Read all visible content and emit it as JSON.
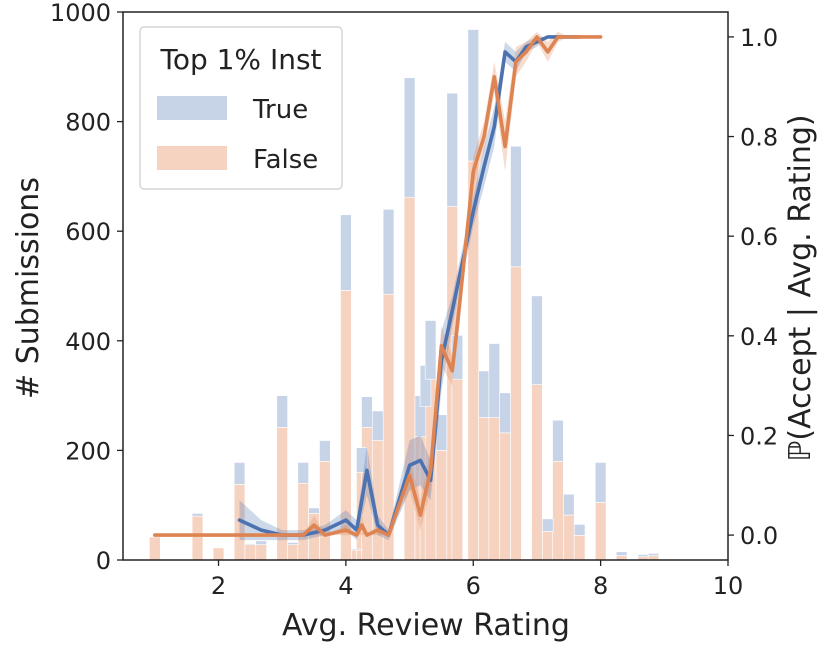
{
  "chart_data": {
    "type": "bar+line",
    "xlabel": "Avg. Review Rating",
    "ylabel_left": "# Submissions",
    "ylabel_right": "ℙ(Accept | Avg. Rating)",
    "xlim": [
      0.5,
      10
    ],
    "ylim_left": [
      0,
      1000
    ],
    "ylim_right": [
      -0.05,
      1.05
    ],
    "x_ticks": [
      2,
      4,
      6,
      8,
      10
    ],
    "y_ticks_left": [
      0,
      200,
      400,
      600,
      800,
      1000
    ],
    "y_ticks_right": [
      0.0,
      0.2,
      0.4,
      0.6,
      0.8,
      1.0
    ],
    "y_tick_labels_right": [
      "0.0",
      "0.2",
      "0.4",
      "0.6",
      "0.8",
      "1.0"
    ],
    "bar_width": 0.17,
    "legend": {
      "title": "Top 1% Inst",
      "position": "top-left",
      "entries": [
        "True",
        "False"
      ]
    },
    "colors": {
      "true_bar": "#c7d4e8",
      "false_bar": "#f6d3c1",
      "true_line": "#4c72b0",
      "false_line": "#dd8452"
    },
    "histogram": [
      {
        "x": 1.0,
        "total": 42,
        "false": 42
      },
      {
        "x": 1.67,
        "total": 85,
        "false": 80
      },
      {
        "x": 2.0,
        "total": 22,
        "false": 22
      },
      {
        "x": 2.33,
        "total": 178,
        "false": 138
      },
      {
        "x": 2.5,
        "total": 30,
        "false": 28
      },
      {
        "x": 2.67,
        "total": 35,
        "false": 28
      },
      {
        "x": 3.0,
        "total": 300,
        "false": 242
      },
      {
        "x": 3.17,
        "total": 32,
        "false": 28
      },
      {
        "x": 3.33,
        "total": 178,
        "false": 140
      },
      {
        "x": 3.5,
        "total": 95,
        "false": 85
      },
      {
        "x": 3.67,
        "total": 218,
        "false": 180
      },
      {
        "x": 4.0,
        "total": 630,
        "false": 492
      },
      {
        "x": 4.17,
        "total": 20,
        "false": 18
      },
      {
        "x": 4.25,
        "total": 205,
        "false": 160
      },
      {
        "x": 4.33,
        "total": 298,
        "false": 242
      },
      {
        "x": 4.5,
        "total": 272,
        "false": 218
      },
      {
        "x": 4.67,
        "total": 640,
        "false": 485
      },
      {
        "x": 5.0,
        "total": 880,
        "false": 662
      },
      {
        "x": 5.17,
        "total": 300,
        "false": 225
      },
      {
        "x": 5.25,
        "total": 355,
        "false": 280
      },
      {
        "x": 5.33,
        "total": 437,
        "false": 330
      },
      {
        "x": 5.5,
        "total": 265,
        "false": 200
      },
      {
        "x": 5.67,
        "total": 852,
        "false": 645
      },
      {
        "x": 5.75,
        "total": 410,
        "false": 330
      },
      {
        "x": 6.0,
        "total": 968,
        "false": 728
      },
      {
        "x": 6.17,
        "total": 345,
        "false": 260
      },
      {
        "x": 6.33,
        "total": 395,
        "false": 260
      },
      {
        "x": 6.5,
        "total": 305,
        "false": 232
      },
      {
        "x": 6.67,
        "total": 755,
        "false": 535
      },
      {
        "x": 7.0,
        "total": 482,
        "false": 320
      },
      {
        "x": 7.17,
        "total": 75,
        "false": 52
      },
      {
        "x": 7.33,
        "total": 255,
        "false": 180
      },
      {
        "x": 7.5,
        "total": 120,
        "false": 82
      },
      {
        "x": 7.67,
        "total": 65,
        "false": 45
      },
      {
        "x": 8.0,
        "total": 178,
        "false": 105
      },
      {
        "x": 8.33,
        "total": 15,
        "false": 8
      },
      {
        "x": 8.67,
        "total": 10,
        "false": 6
      },
      {
        "x": 8.83,
        "total": 12,
        "false": 8
      }
    ],
    "series": [
      {
        "key": "true_line",
        "x": [
          2.33,
          2.67,
          3.0,
          3.33,
          3.67,
          4.0,
          4.17,
          4.33,
          4.5,
          4.67,
          5.0,
          5.17,
          5.33,
          5.5,
          5.67,
          6.0,
          6.17,
          6.33,
          6.5,
          6.67,
          6.83,
          7.0,
          7.17,
          7.33,
          7.5,
          7.67
        ],
        "y": [
          0.03,
          0.01,
          0.0,
          0.0,
          0.01,
          0.03,
          0.01,
          0.13,
          0.02,
          0.0,
          0.14,
          0.15,
          0.11,
          0.35,
          0.45,
          0.65,
          0.74,
          0.82,
          0.97,
          0.95,
          0.98,
          0.99,
          1.0,
          1.0,
          1.0,
          1.0
        ],
        "band": [
          0.04,
          0.02,
          0.01,
          0.01,
          0.01,
          0.02,
          0.02,
          0.05,
          0.02,
          0.01,
          0.05,
          0.05,
          0.04,
          0.06,
          0.03,
          0.03,
          0.04,
          0.04,
          0.02,
          0.02,
          0.01,
          0.01,
          0.0,
          0.0,
          0.0,
          0.0
        ]
      },
      {
        "key": "false_line",
        "x": [
          1.0,
          2.0,
          3.0,
          3.17,
          3.33,
          3.5,
          3.67,
          4.0,
          4.17,
          4.25,
          4.33,
          4.5,
          4.67,
          5.0,
          5.17,
          5.33,
          5.5,
          5.67,
          5.75,
          6.0,
          6.17,
          6.33,
          6.5,
          6.67,
          6.83,
          7.0,
          7.17,
          7.33,
          7.5,
          7.67,
          8.0
        ],
        "y": [
          0.0,
          0.0,
          0.0,
          0.0,
          0.0,
          0.02,
          0.0,
          0.01,
          0.0,
          0.02,
          0.0,
          0.01,
          0.0,
          0.12,
          0.04,
          0.13,
          0.38,
          0.33,
          0.42,
          0.73,
          0.8,
          0.92,
          0.78,
          0.95,
          0.97,
          1.0,
          0.97,
          1.0,
          1.0,
          1.0,
          1.0
        ],
        "band": [
          0.0,
          0.0,
          0.0,
          0.0,
          0.0,
          0.02,
          0.0,
          0.01,
          0.0,
          0.02,
          0.0,
          0.01,
          0.0,
          0.03,
          0.03,
          0.04,
          0.04,
          0.03,
          0.04,
          0.03,
          0.03,
          0.03,
          0.05,
          0.03,
          0.02,
          0.01,
          0.02,
          0.01,
          0.0,
          0.0,
          0.0
        ]
      }
    ]
  }
}
